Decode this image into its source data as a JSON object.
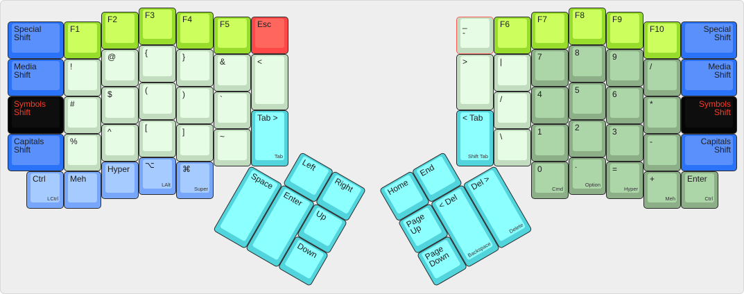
{
  "palette": {
    "blue": {
      "outer": "#2a72f7",
      "face": "#5a90fb",
      "text": "#1c1c1c"
    },
    "black": {
      "outer": "#050505",
      "face": "#0e0e0e",
      "text": "#ff3b26"
    },
    "lightblue": {
      "outer": "#78a6fb",
      "face": "#a6cbff",
      "text": "#1c1c1c"
    },
    "fkey": {
      "outer": "#99dd2c",
      "face": "#ccff5e",
      "text": "#1c1c1c"
    },
    "esc": {
      "outer": "#ff4747",
      "face": "#ff665e",
      "text": "#1c1c1c"
    },
    "symbol": {
      "outer": "#c2dcc0",
      "face": "#e6fce4",
      "text": "#1c1c1c"
    },
    "cyan": {
      "outer": "#52d4dc",
      "face": "#8cffff",
      "text": "#1c1c1c"
    },
    "numpad": {
      "outer": "#8caf88",
      "face": "#acd6a8",
      "text": "#1c1c1c"
    }
  },
  "left_keys": [
    {
      "label": "Special\nShift",
      "color": "blue"
    },
    {
      "label": "Media\nShift",
      "color": "blue"
    },
    {
      "label": "Symbols\nShift",
      "color": "black"
    },
    {
      "label": "Capitals\nShift",
      "color": "blue"
    },
    {
      "label": "Ctrl",
      "sub": "LCtrl",
      "color": "lightblue"
    },
    {
      "label": "F1",
      "color": "fkey"
    },
    {
      "label": "!",
      "color": "symbol"
    },
    {
      "label": "#",
      "color": "symbol"
    },
    {
      "label": "%",
      "color": "symbol"
    },
    {
      "label": "Meh",
      "color": "lightblue"
    },
    {
      "label": "F2",
      "color": "fkey"
    },
    {
      "label": "@",
      "color": "symbol"
    },
    {
      "label": "$",
      "color": "symbol"
    },
    {
      "label": "^",
      "color": "symbol"
    },
    {
      "label": "Hyper",
      "color": "lightblue"
    },
    {
      "label": "F3",
      "color": "fkey"
    },
    {
      "label": "{",
      "color": "symbol"
    },
    {
      "label": "(",
      "color": "symbol"
    },
    {
      "label": "[",
      "color": "symbol"
    },
    {
      "label": "⌥",
      "sub": "LAlt",
      "color": "lightblue"
    },
    {
      "label": "F4",
      "color": "fkey"
    },
    {
      "label": "}",
      "color": "symbol"
    },
    {
      "label": ")",
      "color": "symbol"
    },
    {
      "label": "]",
      "color": "symbol"
    },
    {
      "label": "⌘",
      "sub": "Super",
      "color": "lightblue"
    },
    {
      "label": "F5",
      "color": "fkey"
    },
    {
      "label": "&",
      "color": "symbol"
    },
    {
      "label": "`",
      "color": "symbol"
    },
    {
      "label": "~",
      "color": "symbol"
    },
    {
      "label": "Esc",
      "color": "esc"
    },
    {
      "label": "<",
      "color": "symbol"
    },
    {
      "label": "Tab >",
      "sub": "Tab",
      "color": "cyan"
    }
  ],
  "right_keys": [
    {
      "label": "_\n-",
      "color": "symbol",
      "highlight": "#ff5a5a"
    },
    {
      "label": ">",
      "color": "symbol"
    },
    {
      "label": "< Tab",
      "sub": "Shift Tab",
      "color": "cyan"
    },
    {
      "label": "F6",
      "color": "fkey"
    },
    {
      "label": "|",
      "color": "symbol"
    },
    {
      "label": "/",
      "color": "symbol"
    },
    {
      "label": "\\",
      "color": "symbol"
    },
    {
      "label": "F7",
      "color": "fkey"
    },
    {
      "label": "7",
      "color": "numpad"
    },
    {
      "label": "4",
      "color": "numpad"
    },
    {
      "label": "1",
      "color": "numpad"
    },
    {
      "label": "0",
      "sub": "Cmd",
      "color": "numpad"
    },
    {
      "label": "F8",
      "color": "fkey"
    },
    {
      "label": "8",
      "color": "numpad"
    },
    {
      "label": "5",
      "color": "numpad"
    },
    {
      "label": "2",
      "color": "numpad"
    },
    {
      "label": ".",
      "sub": "Option",
      "color": "numpad"
    },
    {
      "label": "F9",
      "color": "fkey"
    },
    {
      "label": "9",
      "color": "numpad"
    },
    {
      "label": "6",
      "color": "numpad"
    },
    {
      "label": "3",
      "color": "numpad"
    },
    {
      "label": "=",
      "sub": "Hyper",
      "color": "numpad"
    },
    {
      "label": "F10",
      "color": "fkey"
    },
    {
      "label": "/",
      "color": "numpad"
    },
    {
      "label": "*",
      "color": "numpad"
    },
    {
      "label": "-",
      "color": "numpad"
    },
    {
      "label": "+",
      "sub": "Meh",
      "color": "numpad"
    },
    {
      "label": "Special\nShift",
      "color": "blue",
      "align": "right"
    },
    {
      "label": "Media\nShift",
      "color": "blue",
      "align": "right"
    },
    {
      "label": "Symbols\nShift",
      "color": "black",
      "align": "right"
    },
    {
      "label": "Capitals\nShift",
      "color": "blue",
      "align": "right"
    },
    {
      "label": "Enter",
      "sub": "Ctrl",
      "color": "numpad"
    }
  ],
  "left_thumb": [
    {
      "label": "Left",
      "color": "cyan"
    },
    {
      "label": "Right",
      "color": "cyan"
    },
    {
      "label": "Space",
      "color": "cyan"
    },
    {
      "label": "Enter",
      "color": "cyan"
    },
    {
      "label": "Up",
      "color": "cyan"
    },
    {
      "label": "Down",
      "color": "cyan"
    }
  ],
  "right_thumb": [
    {
      "label": "Home",
      "color": "cyan"
    },
    {
      "label": "End",
      "color": "cyan"
    },
    {
      "label": "Page\nUp",
      "color": "cyan"
    },
    {
      "label": "Page\nDown",
      "color": "cyan"
    },
    {
      "label": "< Del",
      "sub": "Backspace",
      "color": "cyan"
    },
    {
      "label": "Del >",
      "sub": "Delete",
      "color": "cyan"
    }
  ]
}
